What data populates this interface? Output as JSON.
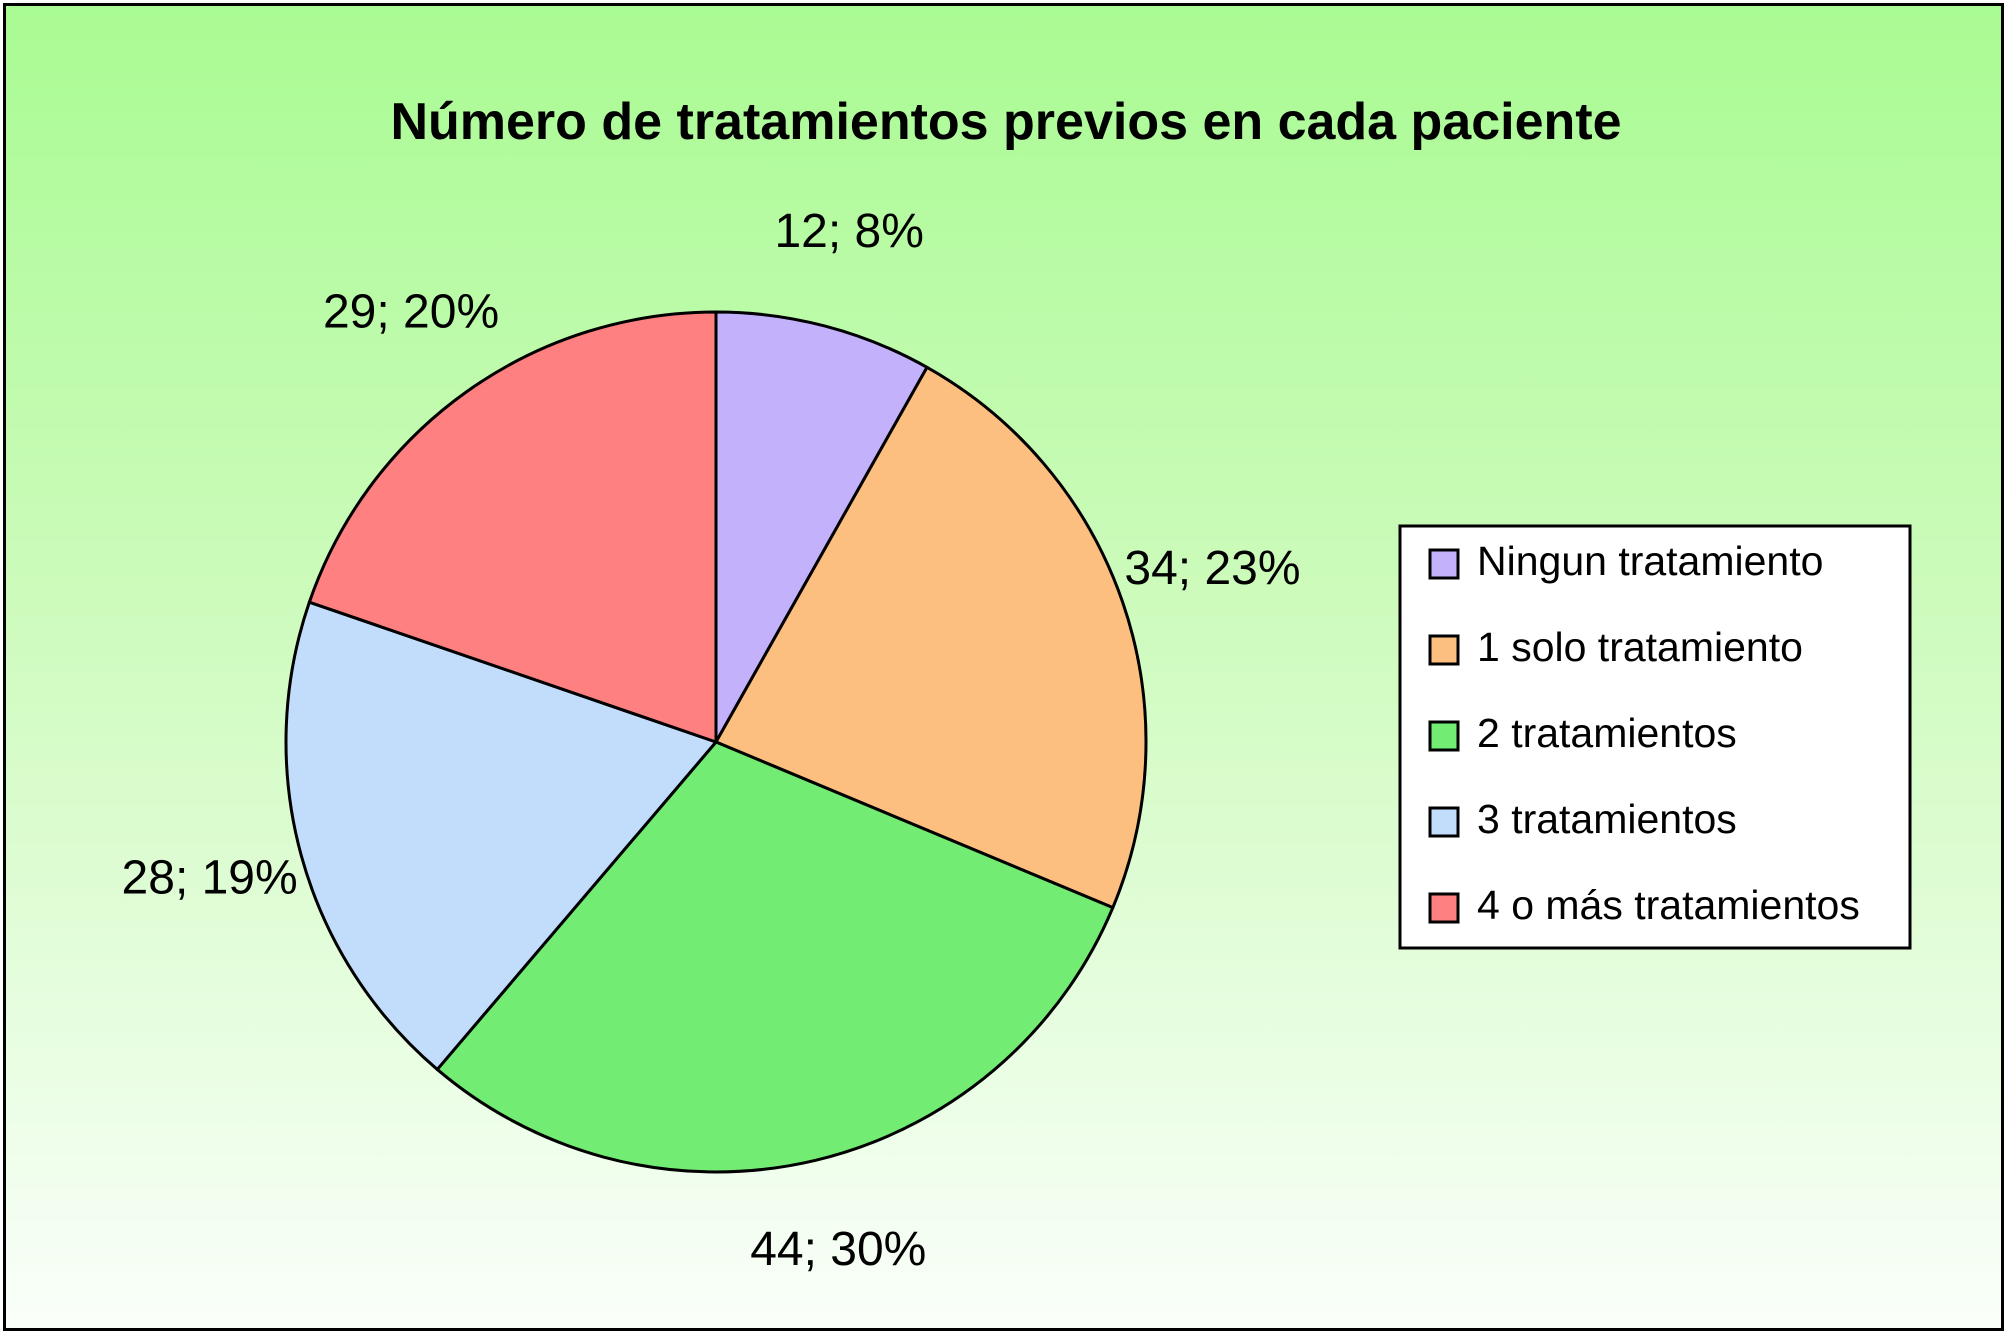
{
  "chart_data": {
    "type": "pie",
    "title": "Número de tratamientos previos en cada paciente",
    "categories": [
      "Ningun tratamiento",
      "1 solo tratamiento",
      "2 tratamientos",
      "3 tratamientos",
      "4 o más tratamientos"
    ],
    "values": [
      12,
      34,
      44,
      28,
      29
    ],
    "data_labels": [
      "12; 8%",
      "34; 23%",
      "44; 30%",
      "28; 19%",
      "29; 20%"
    ],
    "colors": [
      "#c3b2fb",
      "#fdbf7f",
      "#72ec72",
      "#c2dcfc",
      "#fe8080"
    ],
    "legend_position": "right",
    "start_angle": "12 o'clock",
    "direction": "clockwise",
    "grid": false
  }
}
